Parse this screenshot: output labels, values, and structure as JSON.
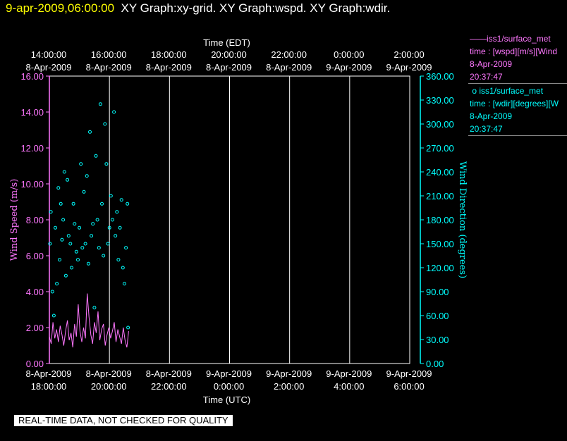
{
  "header": {
    "timestamp": "9-apr-2009,06:00:00",
    "graph_titles": "XY Graph:xy-grid.  XY Graph:wspd.  XY Graph:wdir."
  },
  "legend": [
    {
      "line1": "iss1/surface_met",
      "line2": "time : [wspd][m/s][Wind",
      "line3": "8-Apr-2009",
      "line4": "20:37:47",
      "color": "#ff77ff"
    },
    {
      "line1": "iss1/surface_met",
      "line2": "time : [wdir][degrees][W",
      "line3": "8-Apr-2009",
      "line4": "20:37:47",
      "color": "#00ffff"
    }
  ],
  "footer": {
    "notice": "REAL-TIME DATA, NOT CHECKED FOR QUALITY"
  },
  "chart_data": {
    "type": "line",
    "top_axis": {
      "label": "Time (EDT)",
      "ticks": [
        {
          "time": "14:00:00",
          "date": "8-Apr-2009"
        },
        {
          "time": "16:00:00",
          "date": "8-Apr-2009"
        },
        {
          "time": "18:00:00",
          "date": "8-Apr-2009"
        },
        {
          "time": "20:00:00",
          "date": "8-Apr-2009"
        },
        {
          "time": "22:00:00",
          "date": "8-Apr-2009"
        },
        {
          "time": "0:00:00",
          "date": "9-Apr-2009"
        },
        {
          "time": "2:00:00",
          "date": "9-Apr-2009"
        }
      ]
    },
    "bottom_axis": {
      "label": "Time (UTC)",
      "ticks": [
        {
          "date": "8-Apr-2009",
          "time": "18:00:00"
        },
        {
          "date": "8-Apr-2009",
          "time": "20:00:00"
        },
        {
          "date": "8-Apr-2009",
          "time": "22:00:00"
        },
        {
          "date": "9-Apr-2009",
          "time": "0:00:00"
        },
        {
          "date": "9-Apr-2009",
          "time": "2:00:00"
        },
        {
          "date": "9-Apr-2009",
          "time": "4:00:00"
        },
        {
          "date": "9-Apr-2009",
          "time": "6:00:00"
        }
      ]
    },
    "x_range_hours_utc": [
      18,
      30
    ],
    "left_axis": {
      "label": "Wind Speed (m/s)",
      "ylim": [
        0,
        16
      ],
      "ticks": [
        "0.00",
        "2.00",
        "4.00",
        "6.00",
        "8.00",
        "10.00",
        "12.00",
        "14.00",
        "16.00"
      ],
      "color": "#ff77ff"
    },
    "right_axis": {
      "label": "Wind Direction (degrees)",
      "ylim": [
        0,
        360
      ],
      "ticks": [
        "0.00",
        "30.00",
        "60.00",
        "90.00",
        "120.00",
        "150.00",
        "180.00",
        "210.00",
        "240.00",
        "270.00",
        "300.00",
        "330.00",
        "360.00"
      ],
      "color": "#00ffff"
    },
    "grid": true,
    "series": [
      {
        "key": "wspd",
        "kind": "line",
        "axis": "left",
        "color": "#ff77ff",
        "x": [
          18.0,
          18.06,
          18.12,
          18.18,
          18.24,
          18.3,
          18.36,
          18.42,
          18.48,
          18.54,
          18.6,
          18.66,
          18.72,
          18.78,
          18.84,
          18.9,
          18.96,
          19.02,
          19.08,
          19.14,
          19.2,
          19.26,
          19.32,
          19.38,
          19.44,
          19.5,
          19.56,
          19.62,
          19.68,
          19.74,
          19.8,
          19.86,
          19.92,
          19.98,
          20.04,
          20.1,
          20.16,
          20.22,
          20.28,
          20.34,
          20.4,
          20.46,
          20.52,
          20.58,
          20.64
        ],
        "y": [
          1.5,
          1.1,
          2.3,
          1.4,
          1.9,
          1.2,
          2.1,
          1.6,
          1.0,
          1.8,
          2.4,
          1.3,
          1.7,
          0.9,
          2.2,
          1.5,
          3.3,
          1.8,
          1.2,
          2.0,
          1.4,
          3.9,
          2.6,
          1.6,
          1.1,
          2.3,
          1.7,
          2.9,
          1.3,
          1.9,
          2.2,
          1.0,
          1.6,
          2.0,
          1.4,
          1.8,
          2.3,
          1.2,
          1.9,
          1.5,
          1.1,
          2.0,
          1.3,
          0.9,
          1.8
        ]
      },
      {
        "key": "wdir",
        "kind": "scatter",
        "axis": "right",
        "color": "#00ffff",
        "x": [
          18.02,
          18.05,
          18.1,
          18.15,
          18.2,
          18.25,
          18.3,
          18.34,
          18.38,
          18.42,
          18.46,
          18.5,
          18.55,
          18.6,
          18.64,
          18.7,
          18.74,
          18.8,
          18.84,
          18.9,
          18.95,
          19.0,
          19.05,
          19.1,
          19.15,
          19.2,
          19.25,
          19.3,
          19.35,
          19.4,
          19.45,
          19.5,
          19.55,
          19.6,
          19.65,
          19.7,
          19.75,
          19.8,
          19.85,
          19.9,
          19.95,
          20.0,
          20.05,
          20.1,
          20.15,
          20.2,
          20.25,
          20.3,
          20.35,
          20.4,
          20.45,
          20.5,
          20.55,
          20.6,
          20.62
        ],
        "y": [
          150,
          190,
          90,
          60,
          170,
          100,
          220,
          130,
          200,
          155,
          180,
          240,
          110,
          230,
          160,
          150,
          120,
          200,
          175,
          140,
          130,
          170,
          250,
          145,
          215,
          150,
          235,
          125,
          290,
          160,
          175,
          70,
          260,
          180,
          145,
          325,
          200,
          135,
          300,
          250,
          150,
          170,
          210,
          180,
          315,
          160,
          190,
          130,
          170,
          205,
          120,
          100,
          145,
          200,
          45
        ]
      }
    ]
  }
}
